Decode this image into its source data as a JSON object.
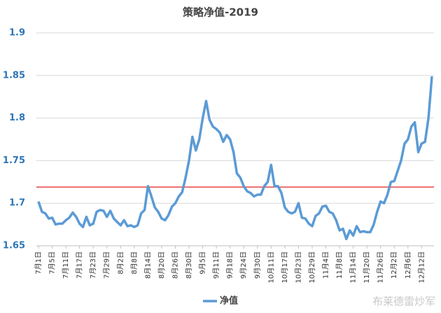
{
  "chart_data": {
    "type": "line",
    "title": "策略净值-2019",
    "categories": [
      "7月1日",
      null,
      null,
      null,
      "7月5日",
      null,
      null,
      null,
      "7月11日",
      null,
      null,
      null,
      "7月17日",
      null,
      null,
      null,
      "7月23日",
      null,
      null,
      null,
      "7月29日",
      null,
      null,
      null,
      "8月2日",
      null,
      null,
      null,
      "8月8日",
      null,
      null,
      null,
      "8月14日",
      null,
      null,
      null,
      "8月20日",
      null,
      null,
      null,
      "8月26日",
      null,
      null,
      null,
      "8月30日",
      null,
      null,
      null,
      "9月5日",
      null,
      null,
      null,
      "9月11日",
      null,
      null,
      null,
      "9月18日",
      null,
      null,
      null,
      "9月24日",
      null,
      null,
      null,
      "9月30日",
      null,
      null,
      null,
      "10月11日",
      null,
      null,
      null,
      "10月17日",
      null,
      null,
      null,
      "10月23日",
      null,
      null,
      null,
      "10月29日",
      null,
      null,
      null,
      "11月4日",
      null,
      null,
      null,
      "11月8日",
      null,
      null,
      null,
      "11月14日",
      null,
      null,
      null,
      "11月20日",
      null,
      null,
      null,
      "11月26日",
      null,
      null,
      null,
      "12月2日",
      null,
      null,
      null,
      "12月6日",
      null,
      null,
      null,
      "12月12日",
      null,
      null,
      null
    ],
    "series": [
      {
        "name": "净值",
        "color": "#5b9bd5",
        "values": [
          1.702,
          1.69,
          1.688,
          1.682,
          1.683,
          1.675,
          1.676,
          1.676,
          1.68,
          1.683,
          1.689,
          1.684,
          1.676,
          1.672,
          1.684,
          1.674,
          1.676,
          1.69,
          1.692,
          1.691,
          1.684,
          1.691,
          1.682,
          1.678,
          1.674,
          1.68,
          1.673,
          1.674,
          1.672,
          1.674,
          1.688,
          1.692,
          1.72,
          1.708,
          1.695,
          1.69,
          1.682,
          1.68,
          1.686,
          1.696,
          1.7,
          1.708,
          1.713,
          1.73,
          1.75,
          1.778,
          1.762,
          1.775,
          1.8,
          1.82,
          1.798,
          1.79,
          1.787,
          1.783,
          1.772,
          1.78,
          1.775,
          1.76,
          1.735,
          1.73,
          1.72,
          1.714,
          1.712,
          1.708,
          1.71,
          1.71,
          1.72,
          1.725,
          1.745,
          1.72,
          1.72,
          1.712,
          1.695,
          1.69,
          1.688,
          1.69,
          1.7,
          1.683,
          1.682,
          1.676,
          1.673,
          1.685,
          1.688,
          1.696,
          1.697,
          1.69,
          1.688,
          1.68,
          1.668,
          1.67,
          1.658,
          1.668,
          1.662,
          1.673,
          1.666,
          1.667,
          1.666,
          1.666,
          1.675,
          1.69,
          1.702,
          1.7,
          1.71,
          1.725,
          1.726,
          1.738,
          1.75,
          1.77,
          1.775,
          1.79,
          1.795,
          1.76,
          1.77,
          1.772,
          1.8,
          1.849
        ]
      }
    ],
    "reference_line": {
      "value": 1.719,
      "color": "#e02020"
    },
    "ylim": [
      1.65,
      1.9
    ],
    "yticks": [
      1.65,
      1.7,
      1.75,
      1.8,
      1.85,
      1.9
    ],
    "grid": true,
    "legend": "bottom",
    "watermark": "布莱德雷炒军"
  }
}
